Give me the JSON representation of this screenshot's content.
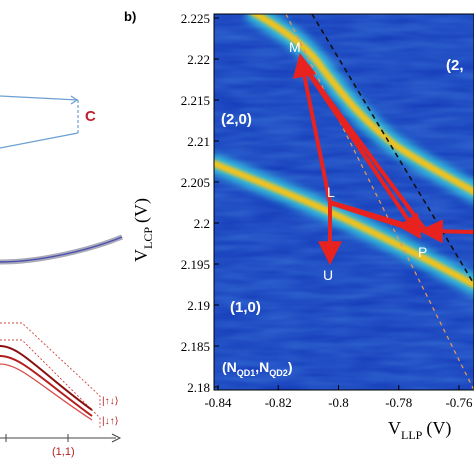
{
  "panel_b": {
    "label": "b)",
    "ylabel_main": "V",
    "ylabel_sub": "LCP",
    "ylabel_unit": "(V)",
    "xlabel_main": "V",
    "xlabel_sub": "LLP",
    "xlabel_unit": "(V)",
    "y_ticks": [
      "2.225",
      "2.22",
      "2.215",
      "2.21",
      "2.205",
      "2.2",
      "2.195",
      "2.19",
      "2.185",
      "2.18"
    ],
    "x_ticks": [
      "-0.84",
      "-0.82",
      "-0.8",
      "-0.78",
      "-0.76"
    ],
    "regions": {
      "r20": "(2,0)",
      "r10": "(1,0)",
      "r2x": "(2,",
      "nqd_open": "(N",
      "nqd_sub1": "QD1",
      "nqd_comma": ",N",
      "nqd_sub2": "QD2",
      "nqd_close": ")"
    },
    "points": {
      "M": "M",
      "L": "L",
      "U": "U",
      "P": "P"
    },
    "colors": {
      "background": "#1237b8",
      "transition": "#f2c21a",
      "path": "#e8231f",
      "black_dashed": "#111111",
      "orange_dashed": "#e0955a"
    }
  },
  "panel_a": {
    "label_c": "C",
    "spin_up_down": "|↑↓⟩",
    "spin_down_up": "|↓↑⟩",
    "axis_label": "(1,1)"
  },
  "chart_data": {
    "type": "heatmap",
    "xlabel": "V_LLP (V)",
    "ylabel": "V_LCP (V)",
    "xlim": [
      -0.84,
      -0.75
    ],
    "ylim": [
      2.18,
      2.225
    ],
    "path": [
      {
        "label": "M",
        "x": -0.81,
        "y": 2.221
      },
      {
        "label": "L",
        "x": -0.799,
        "y": 2.203
      },
      {
        "label": "U",
        "x": -0.8,
        "y": 2.197
      },
      {
        "label": "P",
        "x": -0.768,
        "y": 2.1985
      }
    ]
  }
}
